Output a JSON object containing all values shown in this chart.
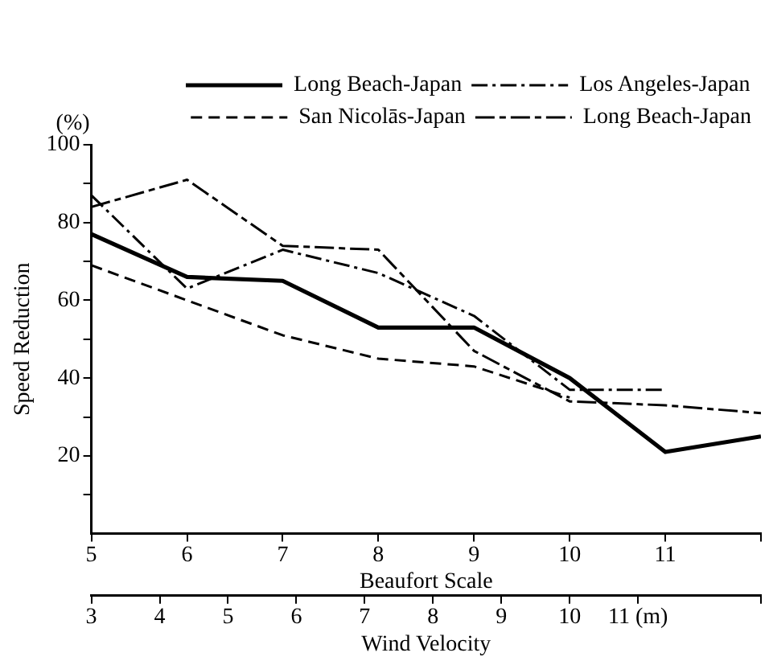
{
  "chart_data": {
    "type": "line",
    "xlabel": "Beaufort Scale",
    "ylabel": "Speed Reduction",
    "x2label": "Wind Velocity",
    "annotations": [
      "(%)"
    ],
    "x": [
      5,
      6,
      7,
      8,
      9,
      10,
      11,
      12
    ],
    "xlim": [
      5,
      12
    ],
    "xticks": [
      5,
      6,
      7,
      8,
      9,
      10,
      11,
      {
        "value": 12,
        "label": null
      }
    ],
    "x2lim": [
      3,
      12.8
    ],
    "x2ticks": [
      3,
      4,
      5,
      6,
      7,
      8,
      9,
      10,
      {
        "value": 11,
        "label": "11 (m)"
      },
      {
        "value": 12.8,
        "label": null
      }
    ],
    "ylim": [
      0,
      100
    ],
    "yticks": [
      {
        "value": 10,
        "label": null
      },
      20,
      {
        "value": 30,
        "label": null
      },
      40,
      {
        "value": 50,
        "label": null
      },
      60,
      {
        "value": 70,
        "label": null
      },
      80,
      {
        "value": 90,
        "label": null
      },
      100
    ],
    "grid": false,
    "legend": "top right",
    "marker": "none",
    "series": [
      {
        "name": "Long Beach-Japan",
        "color": "#000000",
        "line_style": "solid",
        "values": [
          77,
          66,
          65,
          53,
          53,
          40,
          21,
          25
        ]
      },
      {
        "name": "Los Angeles-Japan",
        "color": "#000000",
        "line_style": "dashdot",
        "values": [
          87,
          63,
          73,
          67,
          56,
          37,
          37,
          null
        ]
      },
      {
        "name": "San Nicolās-Japan",
        "color": "#000000",
        "line_style": "dashed",
        "values": [
          69,
          60,
          51,
          45,
          43,
          35,
          null,
          null
        ]
      },
      {
        "name": "Long Beach-Japan",
        "color": "#000000",
        "line_style": "longdash",
        "values": [
          84,
          91,
          74,
          73,
          47,
          34,
          33,
          31
        ]
      }
    ]
  }
}
